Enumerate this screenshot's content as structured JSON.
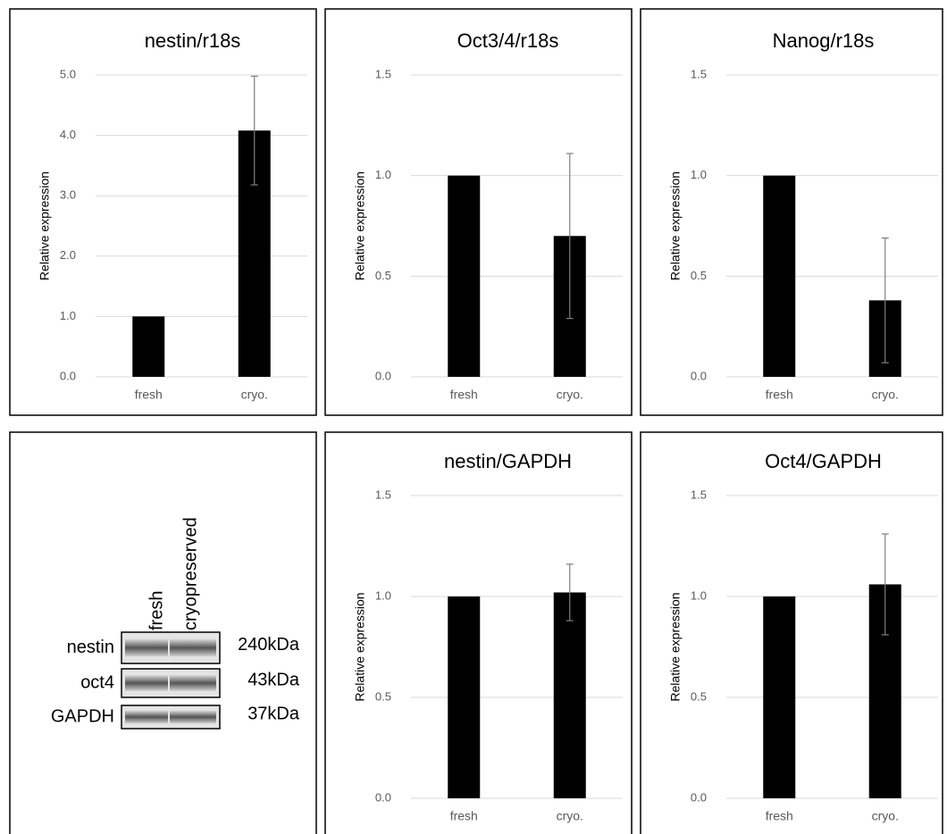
{
  "chart_data": [
    {
      "type": "bar",
      "title": "nestin/r18s",
      "ylabel": "Relative expression",
      "categories": [
        "fresh",
        "cryo."
      ],
      "values": [
        1,
        4.08
      ],
      "errors": [
        null,
        0.9
      ],
      "color": "#000000",
      "ylim": [
        0,
        5
      ],
      "yticks": [
        {
          "value": 0,
          "label": "0.0"
        },
        {
          "value": 1,
          "label": "1.0"
        },
        {
          "value": 2,
          "label": "2.0"
        },
        {
          "value": 3,
          "label": "3.0"
        },
        {
          "value": 4,
          "label": "4.0"
        },
        {
          "value": 5,
          "label": "5.0"
        }
      ],
      "grid": true
    },
    {
      "type": "bar",
      "title": "Oct3/4/r18s",
      "ylabel": "Relative expression",
      "categories": [
        "fresh",
        "cryo."
      ],
      "values": [
        1,
        0.7
      ],
      "errors": [
        null,
        0.41
      ],
      "color": "#000000",
      "ylim": [
        0,
        1.5
      ],
      "yticks": [
        {
          "value": 0,
          "label": "0.0"
        },
        {
          "value": 0.5,
          "label": "0.5"
        },
        {
          "value": 1,
          "label": "1.0"
        },
        {
          "value": 1.5,
          "label": "1.5"
        }
      ],
      "grid": true
    },
    {
      "type": "bar",
      "title": "Nanog/r18s",
      "ylabel": "Relative expression",
      "categories": [
        "fresh",
        "cryo."
      ],
      "values": [
        1,
        0.38
      ],
      "errors": [
        null,
        0.31
      ],
      "color": "#000000",
      "ylim": [
        0,
        1.5
      ],
      "yticks": [
        {
          "value": 0,
          "label": "0.0"
        },
        {
          "value": 0.5,
          "label": "0.5"
        },
        {
          "value": 1,
          "label": "1.0"
        },
        {
          "value": 1.5,
          "label": "1.5"
        }
      ],
      "grid": true
    },
    {
      "type": "bar",
      "title": "nestin/GAPDH",
      "ylabel": "Relative expression",
      "categories": [
        "fresh",
        "cryo."
      ],
      "values": [
        1,
        1.02
      ],
      "errors": [
        null,
        0.14
      ],
      "color": "#000000",
      "ylim": [
        0,
        1.5
      ],
      "yticks": [
        {
          "value": 0,
          "label": "0.0"
        },
        {
          "value": 0.5,
          "label": "0.5"
        },
        {
          "value": 1,
          "label": "1.0"
        },
        {
          "value": 1.5,
          "label": "1.5"
        }
      ],
      "grid": true
    },
    {
      "type": "bar",
      "title": "Oct4/GAPDH",
      "ylabel": "Relative expression",
      "categories": [
        "fresh",
        "cryo."
      ],
      "values": [
        1,
        1.06
      ],
      "errors": [
        null,
        0.25
      ],
      "color": "#000000",
      "ylim": [
        0,
        1.5
      ],
      "yticks": [
        {
          "value": 0,
          "label": "0.0"
        },
        {
          "value": 0.5,
          "label": "0.5"
        },
        {
          "value": 1,
          "label": "1.0"
        },
        {
          "value": 1.5,
          "label": "1.5"
        }
      ],
      "grid": true
    }
  ],
  "blot": {
    "lanes": [
      "fresh",
      "cryopreserved"
    ],
    "rows": [
      {
        "label": "nestin",
        "size": "240kDa"
      },
      {
        "label": "oct4",
        "size": "43kDa"
      },
      {
        "label": "GAPDH",
        "size": "37kDa"
      }
    ]
  }
}
